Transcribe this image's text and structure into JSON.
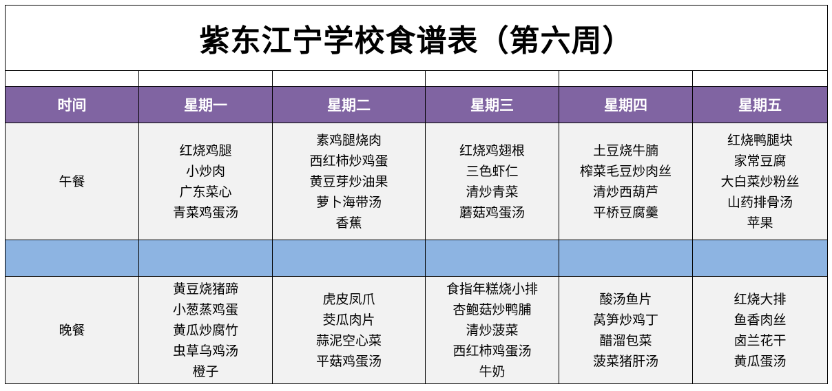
{
  "title": "紫东江宁学校食谱表（第六周）",
  "header": [
    "时间",
    "星期一",
    "星期二",
    "星期三",
    "星期四",
    "星期五"
  ],
  "colors": {
    "header_bg": "#8064A2",
    "separator_bg": "#8DB4E2",
    "cell_bg": "#F2F2F2"
  },
  "meals": [
    {
      "label": "午餐",
      "days": [
        [
          "红烧鸡腿",
          "小炒肉",
          "广东菜心",
          "青菜鸡蛋汤"
        ],
        [
          "素鸡腿烧肉",
          "西红柿炒鸡蛋",
          "黄豆芽炒油果",
          "萝卜海带汤",
          "香蕉"
        ],
        [
          "红烧鸡翅根",
          "三色虾仁",
          "清炒青菜",
          "蘑菇鸡蛋汤"
        ],
        [
          "土豆烧牛腩",
          "榨菜毛豆炒肉丝",
          "清炒西葫芦",
          "平桥豆腐羹"
        ],
        [
          "红烧鸭腿块",
          "家常豆腐",
          "大白菜炒粉丝",
          "山药排骨汤",
          "苹果"
        ]
      ]
    },
    {
      "label": "晚餐",
      "days": [
        [
          "黄豆烧猪蹄",
          "小葱蒸鸡蛋",
          "黄瓜炒腐竹",
          "虫草乌鸡汤",
          "橙子"
        ],
        [
          "虎皮凤爪",
          "茭瓜肉片",
          "蒜泥空心菜",
          "平菇鸡蛋汤"
        ],
        [
          "食指年糕烧小排",
          "杏鲍菇炒鸭脯",
          "清炒菠菜",
          "西红柿鸡蛋汤",
          "牛奶"
        ],
        [
          "酸汤鱼片",
          "莴笋炒鸡丁",
          "醋溜包菜",
          "菠菜猪肝汤"
        ],
        [
          "红烧大排",
          "鱼香肉丝",
          "卤兰花干",
          "黄瓜蛋汤"
        ]
      ]
    }
  ]
}
